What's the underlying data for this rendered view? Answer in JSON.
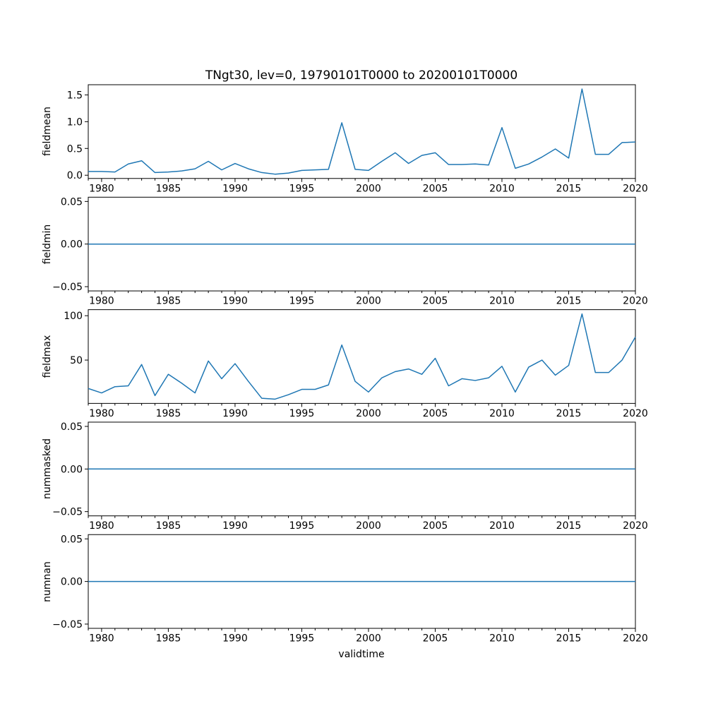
{
  "line_color": "#1f77b4",
  "background_color": "#ffffff",
  "text_color": "#000000",
  "years": [
    1979,
    1980,
    1981,
    1982,
    1983,
    1984,
    1985,
    1986,
    1987,
    1988,
    1989,
    1990,
    1991,
    1992,
    1993,
    1994,
    1995,
    1996,
    1997,
    1998,
    1999,
    2000,
    2001,
    2002,
    2003,
    2004,
    2005,
    2006,
    2007,
    2008,
    2009,
    2010,
    2011,
    2012,
    2013,
    2014,
    2015,
    2016,
    2017,
    2018,
    2019,
    2020
  ],
  "x_ticks": {
    "years": [
      1980,
      1985,
      1990,
      1995,
      2000,
      2005,
      2010,
      2015,
      2020
    ],
    "labels": [
      "1980",
      "1985",
      "1990",
      "1995",
      "2000",
      "2005",
      "2010",
      "2015",
      "2020"
    ]
  },
  "chart_data": [
    {
      "type": "line",
      "title": "TNgt30, lev=0, 19790101T0000 to 20200101T0000",
      "name": "fieldmean",
      "ylabel": "fieldmean",
      "xlabel": "",
      "x_years": [
        1979,
        1980,
        1981,
        1982,
        1983,
        1984,
        1985,
        1986,
        1987,
        1988,
        1989,
        1990,
        1991,
        1992,
        1993,
        1994,
        1995,
        1996,
        1997,
        1998,
        1999,
        2000,
        2001,
        2002,
        2003,
        2004,
        2005,
        2006,
        2007,
        2008,
        2009,
        2010,
        2011,
        2012,
        2013,
        2014,
        2015,
        2016,
        2017,
        2018,
        2019,
        2020
      ],
      "values": [
        0.07,
        0.07,
        0.06,
        0.21,
        0.27,
        0.05,
        0.06,
        0.08,
        0.12,
        0.26,
        0.1,
        0.22,
        0.12,
        0.05,
        0.02,
        0.04,
        0.09,
        0.1,
        0.11,
        0.98,
        0.11,
        0.09,
        0.26,
        0.42,
        0.22,
        0.37,
        0.42,
        0.2,
        0.2,
        0.21,
        0.19,
        0.89,
        0.13,
        0.21,
        0.34,
        0.49,
        0.32,
        1.61,
        0.39,
        0.39,
        0.61,
        0.62
      ],
      "yticks": [
        0.0,
        0.5,
        1.0,
        1.5
      ],
      "ytick_labels": [
        "0.0",
        "0.5",
        "1.0",
        "1.5"
      ],
      "ylim": [
        -0.06,
        1.69
      ],
      "xlim": [
        1979,
        2020
      ],
      "grid": false,
      "legend": "none"
    },
    {
      "type": "line",
      "name": "fieldmin",
      "ylabel": "fieldmin",
      "xlabel": "",
      "values": [
        0,
        0,
        0,
        0,
        0,
        0,
        0,
        0,
        0,
        0,
        0,
        0,
        0,
        0,
        0,
        0,
        0,
        0,
        0,
        0,
        0,
        0,
        0,
        0,
        0,
        0,
        0,
        0,
        0,
        0,
        0,
        0,
        0,
        0,
        0,
        0,
        0,
        0,
        0,
        0,
        0,
        0
      ],
      "yticks": [
        -0.05,
        0.0,
        0.05
      ],
      "ytick_labels": [
        "−0.05",
        "0.00",
        "0.05"
      ],
      "ylim": [
        -0.055,
        0.055
      ],
      "xlim": [
        1979,
        2020
      ],
      "grid": false,
      "legend": "none"
    },
    {
      "type": "line",
      "name": "fieldmax",
      "ylabel": "fieldmax",
      "xlabel": "",
      "values": [
        18,
        13,
        20,
        21,
        45,
        10,
        34,
        24,
        13,
        49,
        29,
        46,
        26,
        7,
        6,
        11,
        17,
        17,
        22,
        67,
        26,
        14,
        30,
        37,
        40,
        34,
        52,
        21,
        29,
        27,
        30,
        43,
        14,
        42,
        50,
        33,
        44,
        102,
        36,
        36,
        50,
        76
      ],
      "yticks": [
        50,
        100
      ],
      "ytick_labels": [
        "50",
        "100"
      ],
      "ylim": [
        1.2,
        106.8
      ],
      "xlim": [
        1979,
        2020
      ],
      "grid": false,
      "legend": "none"
    },
    {
      "type": "line",
      "name": "nummasked",
      "ylabel": "nummasked",
      "xlabel": "",
      "values": [
        0,
        0,
        0,
        0,
        0,
        0,
        0,
        0,
        0,
        0,
        0,
        0,
        0,
        0,
        0,
        0,
        0,
        0,
        0,
        0,
        0,
        0,
        0,
        0,
        0,
        0,
        0,
        0,
        0,
        0,
        0,
        0,
        0,
        0,
        0,
        0,
        0,
        0,
        0,
        0,
        0,
        0
      ],
      "yticks": [
        -0.05,
        0.0,
        0.05
      ],
      "ytick_labels": [
        "−0.05",
        "0.00",
        "0.05"
      ],
      "ylim": [
        -0.055,
        0.055
      ],
      "xlim": [
        1979,
        2020
      ],
      "grid": false,
      "legend": "none"
    },
    {
      "type": "line",
      "name": "numnan",
      "ylabel": "numnan",
      "xlabel": "validtime",
      "values": [
        0,
        0,
        0,
        0,
        0,
        0,
        0,
        0,
        0,
        0,
        0,
        0,
        0,
        0,
        0,
        0,
        0,
        0,
        0,
        0,
        0,
        0,
        0,
        0,
        0,
        0,
        0,
        0,
        0,
        0,
        0,
        0,
        0,
        0,
        0,
        0,
        0,
        0,
        0,
        0,
        0,
        0
      ],
      "yticks": [
        -0.05,
        0.0,
        0.05
      ],
      "ytick_labels": [
        "−0.05",
        "0.00",
        "0.05"
      ],
      "ylim": [
        -0.055,
        0.055
      ],
      "xlim": [
        1979,
        2020
      ],
      "grid": false,
      "legend": "none"
    }
  ]
}
